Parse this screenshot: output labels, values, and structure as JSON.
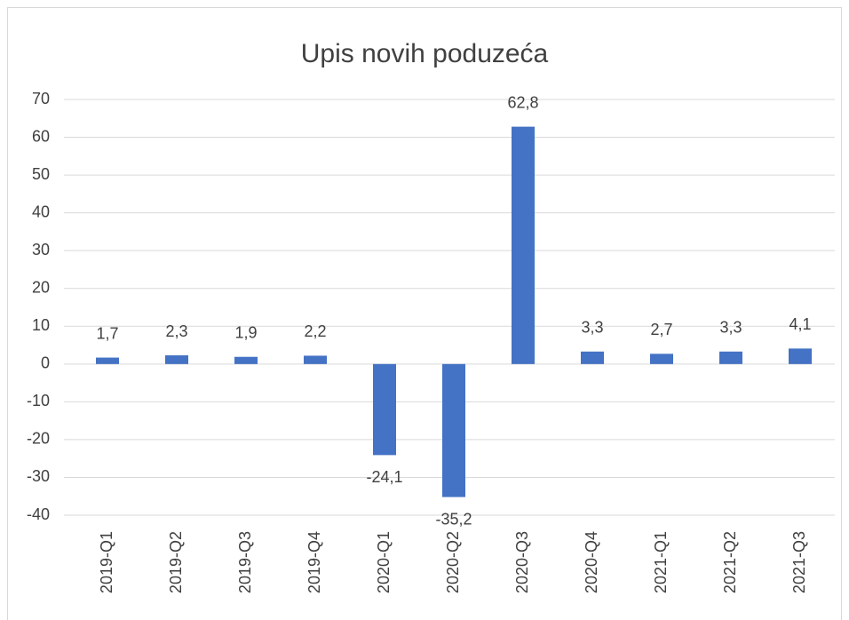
{
  "chart_data": {
    "type": "bar",
    "title": "Upis novih poduzeća",
    "categories": [
      "2019-Q1",
      "2019-Q2",
      "2019-Q3",
      "2019-Q4",
      "2020-Q1",
      "2020-Q2",
      "2020-Q3",
      "2020-Q4",
      "2021-Q1",
      "2021-Q2",
      "2021-Q3"
    ],
    "values": [
      1.7,
      2.3,
      1.9,
      2.2,
      -24.1,
      -35.2,
      62.8,
      3.3,
      2.7,
      3.3,
      4.1
    ],
    "value_labels": [
      "1,7",
      "2,3",
      "1,9",
      "2,2",
      "-24,1",
      "-35,2",
      "62,8",
      "3,3",
      "2,7",
      "3,3",
      "4,1"
    ],
    "color": "#4472c4",
    "ylim": [
      -40,
      70
    ],
    "yticks": [
      -40,
      -30,
      -20,
      -10,
      0,
      10,
      20,
      30,
      40,
      50,
      60,
      70
    ],
    "grid": true
  }
}
